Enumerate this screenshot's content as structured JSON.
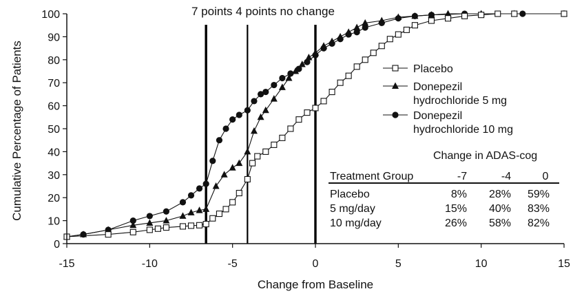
{
  "chart_data": {
    "type": "line",
    "xlabel": "Change from Baseline",
    "ylabel": "Cumulative Percentage of Patients",
    "xlim": [
      -15,
      15
    ],
    "ylim": [
      0,
      100
    ],
    "xticks": [
      "-15",
      "-10",
      "-5",
      "0",
      "5",
      "10",
      "15"
    ],
    "yticks": [
      "0",
      "10",
      "20",
      "30",
      "40",
      "50",
      "60",
      "70",
      "80",
      "90",
      "100"
    ],
    "reference_lines": [
      {
        "x": -6.6,
        "label": "7 points"
      },
      {
        "x": -4.1,
        "label": "4 points"
      },
      {
        "x": 0,
        "label": "no change"
      }
    ],
    "series": [
      {
        "name": "Placebo",
        "marker": "open-square",
        "x": [
          -15,
          -12.5,
          -11,
          -10,
          -9.5,
          -9,
          -8,
          -7.5,
          -7,
          -6.6,
          -6.2,
          -5.8,
          -5.4,
          -5,
          -4.6,
          -4.1,
          -3.8,
          -3.5,
          -3,
          -2.5,
          -2,
          -1.5,
          -1,
          -0.5,
          0,
          0.5,
          1,
          1.5,
          2,
          2.5,
          3,
          3.5,
          4,
          4.5,
          5,
          5.5,
          6,
          7,
          8,
          9,
          10,
          11,
          12,
          15
        ],
        "y": [
          3,
          4,
          5,
          6,
          6.5,
          7,
          7.5,
          7.8,
          8,
          8.5,
          11,
          13,
          15,
          18,
          22,
          28,
          35,
          38,
          40,
          43,
          46,
          50,
          54,
          57,
          59,
          62,
          66,
          70,
          73,
          77,
          80,
          83,
          86,
          89,
          91,
          93,
          95,
          97,
          98,
          99,
          99.5,
          100,
          100,
          100
        ]
      },
      {
        "name": "Donepezil hydrochloride 5 mg",
        "marker": "filled-triangle",
        "x": [
          -15,
          -14,
          -12.5,
          -11,
          -10,
          -9,
          -8,
          -7.5,
          -7,
          -6.6,
          -6,
          -5.5,
          -5,
          -4.6,
          -4.1,
          -3.7,
          -3.3,
          -3,
          -2.5,
          -2,
          -1.6,
          -1.2,
          -0.8,
          -0.4,
          0,
          0.5,
          1,
          1.5,
          2,
          2.5,
          3,
          4,
          5,
          6,
          7,
          8,
          10,
          12,
          15
        ],
        "y": [
          3,
          4,
          6,
          8,
          9,
          10,
          12,
          13.5,
          14.5,
          15,
          25,
          30,
          33,
          35,
          40,
          49,
          55,
          58,
          63,
          68,
          72,
          75,
          78,
          81,
          83,
          86,
          88,
          90,
          92,
          94,
          96,
          97,
          98.5,
          99,
          99.5,
          100,
          100,
          100,
          100
        ]
      },
      {
        "name": "Donepezil hydrochloride 10 mg",
        "marker": "filled-circle",
        "x": [
          -15,
          -14,
          -12.5,
          -11,
          -10,
          -9,
          -8,
          -7.5,
          -7,
          -6.6,
          -6.2,
          -5.8,
          -5.4,
          -5,
          -4.6,
          -4.1,
          -3.7,
          -3.3,
          -3,
          -2.5,
          -2,
          -1.5,
          -1,
          -0.5,
          0,
          0.5,
          1,
          1.5,
          2,
          2.5,
          3,
          4,
          5,
          6,
          7,
          9,
          12.5,
          15
        ],
        "y": [
          3,
          4,
          6,
          10,
          12,
          14,
          18,
          21,
          24,
          26,
          36,
          45,
          50,
          54,
          56,
          58,
          62,
          65,
          66,
          69,
          72,
          74,
          76,
          79,
          82,
          85,
          87,
          89,
          91,
          92,
          94,
          96,
          98,
          99,
          99.5,
          100,
          100,
          100
        ]
      }
    ],
    "legend": {
      "placement": "right-middle",
      "items": [
        {
          "lines": [
            "Placebo"
          ],
          "marker": "open-square"
        },
        {
          "lines": [
            "Donepezil",
            "hydrochloride 5 mg"
          ],
          "marker": "filled-triangle"
        },
        {
          "lines": [
            "Donepezil",
            "hydrochloride 10 mg"
          ],
          "marker": "filled-circle"
        }
      ]
    },
    "inset_table": {
      "title": "Change in ADAS-cog",
      "columns": [
        "Treatment Group",
        "-7",
        "-4",
        "0"
      ],
      "rows": [
        [
          "Placebo",
          "8%",
          "28%",
          "59%"
        ],
        [
          "5 mg/day",
          "15%",
          "40%",
          "83%"
        ],
        [
          "10 mg/day",
          "26%",
          "58%",
          "82%"
        ]
      ]
    }
  }
}
